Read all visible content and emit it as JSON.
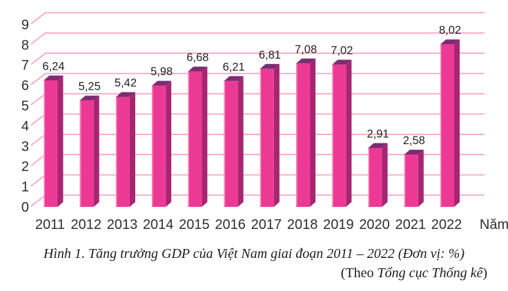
{
  "chart_data": {
    "type": "bar",
    "style_3d": true,
    "categories": [
      "2011",
      "2012",
      "2013",
      "2014",
      "2015",
      "2016",
      "2017",
      "2018",
      "2019",
      "2020",
      "2021",
      "2022"
    ],
    "values": [
      6.24,
      5.25,
      5.42,
      5.98,
      6.68,
      6.21,
      6.81,
      7.08,
      7.02,
      2.91,
      2.58,
      8.02
    ],
    "value_labels": [
      "6,24",
      "5,25",
      "5,42",
      "5,98",
      "6,68",
      "6,21",
      "6,81",
      "7,08",
      "7,02",
      "2,91",
      "2,58",
      "8,02"
    ],
    "y_ticks": [
      0,
      1,
      2,
      3,
      4,
      5,
      6,
      7,
      8,
      9
    ],
    "ylim": [
      0,
      9
    ],
    "xlabel": "Năm",
    "ylabel": "",
    "unit": "%",
    "grid": true,
    "legend": false
  },
  "caption": {
    "line1": "Hình 1. Tăng trưởng GDP của Việt Nam giai đoạn 2011 – 2022 (Đơn vị: %)",
    "line2_prefix": "(Theo ",
    "line2_source": "Tổng cục Thống kê",
    "line2_suffix": ")"
  },
  "colors": {
    "bar_front": "#EC3A94",
    "bar_top": "#7B2D72",
    "bar_side": "#A62672",
    "bar_edge_highlight": "#F585BC",
    "gridline": "#F7A6C8",
    "text": "#2e2e2e",
    "value_text": "#222222"
  }
}
